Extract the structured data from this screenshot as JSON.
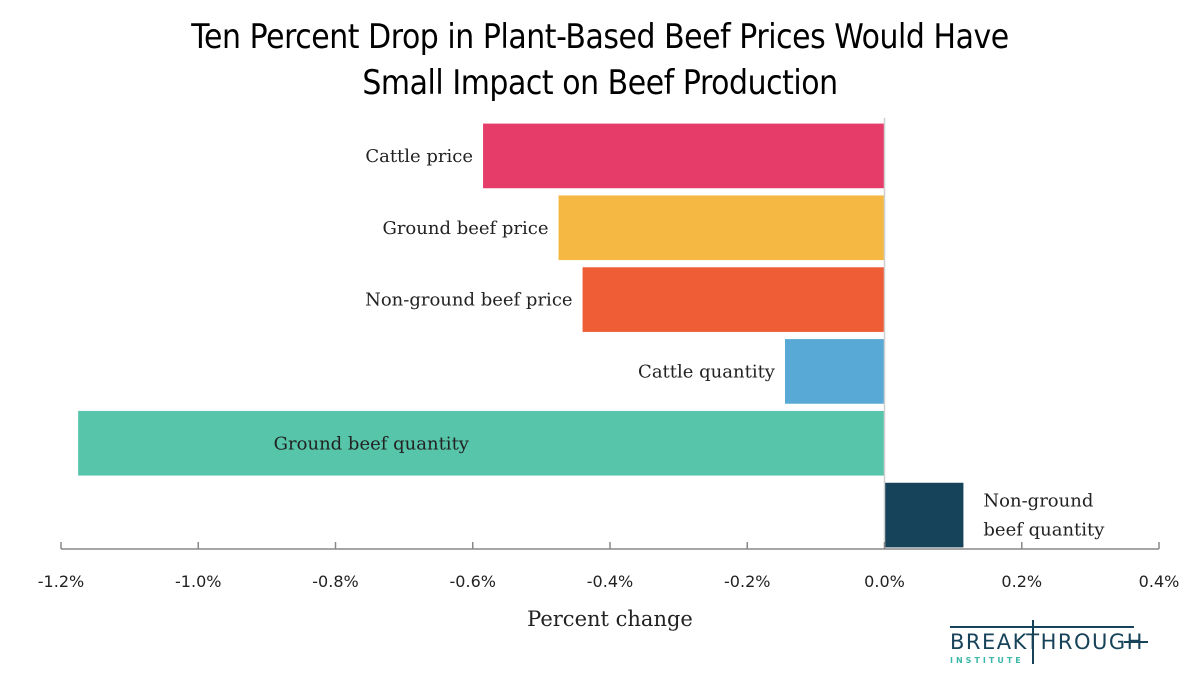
{
  "chart_data": {
    "type": "bar",
    "orientation": "horizontal",
    "title": "Ten Percent Drop in Plant-Based Beef Prices Would Have Small Impact on Beef Production",
    "title_lines": [
      "Ten Percent Drop in Plant-Based Beef Prices Would Have",
      "Small Impact on Beef Production"
    ],
    "xlabel": "Percent change",
    "ylabel": "",
    "xlim": [
      -1.2,
      0.4
    ],
    "x_ticks": [
      -1.2,
      -1.0,
      -0.8,
      -0.6,
      -0.4,
      -0.2,
      0.0,
      0.2,
      0.4
    ],
    "x_tick_labels": [
      "-1.2%",
      "-1.0%",
      "-0.8%",
      "-0.6%",
      "-0.4%",
      "-0.2%",
      "0.0%",
      "0.2%",
      "0.4%"
    ],
    "grid": false,
    "legend": "none",
    "categories": [
      "Cattle price",
      "Ground beef price",
      "Non-ground beef  price",
      "Cattle quantity",
      "Ground beef quantity",
      "Non-ground beef quantity"
    ],
    "category_label_lines": [
      [
        "Cattle price"
      ],
      [
        "Ground beef price"
      ],
      [
        "Non-ground beef  price"
      ],
      [
        "Cattle quantity"
      ],
      [
        "Ground beef quantity"
      ],
      [
        "Non-ground",
        "beef quantity"
      ]
    ],
    "values": [
      -0.585,
      -0.475,
      -0.44,
      -0.145,
      -1.175,
      0.115
    ],
    "colors": [
      "#e63c6a",
      "#f5b843",
      "#ef5d37",
      "#58a9d5",
      "#57c5a9",
      "#17435a"
    ]
  },
  "branding": {
    "logo_word": "BREAKTHROUGH",
    "logo_sub": "INSTITUTE"
  }
}
